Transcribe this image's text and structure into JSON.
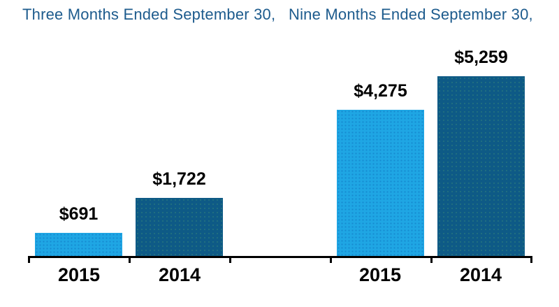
{
  "chart_data": {
    "type": "bar",
    "title": "",
    "groups": [
      {
        "title": "Three Months Ended September 30,",
        "categories": [
          "2015",
          "2014"
        ],
        "values": [
          691,
          1722
        ],
        "labels": [
          "$691",
          "$1,722"
        ]
      },
      {
        "title": "Nine Months Ended September 30,",
        "categories": [
          "2015",
          "2014"
        ],
        "values": [
          4275,
          5259
        ],
        "labels": [
          "$4,275",
          "$5,259"
        ]
      }
    ],
    "series_colors": {
      "2015": "#1FA6E4",
      "2014": "#0E5A86"
    },
    "value_prefix": "$",
    "ylim": [
      0,
      5400
    ],
    "grid": false,
    "legend": "none",
    "data_labels": "above-bars"
  },
  "colors": {
    "group_title": "#1D5B8D",
    "axis": "#000000",
    "value_label": "#000000",
    "background": "#ffffff"
  }
}
